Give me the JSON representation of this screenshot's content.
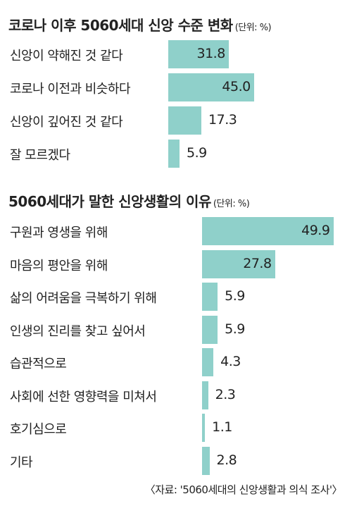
{
  "chart_data": [
    {
      "type": "bar",
      "orientation": "horizontal",
      "title": "코로나 이후 5060세대 신앙 수준 변화",
      "unit": "(단위: %)",
      "categories": [
        "신앙이 약해진 것 같다",
        "코로나 이전과 비슷하다",
        "신앙이 깊어진 것 같다",
        "잘 모르겠다"
      ],
      "values": [
        31.8,
        45.0,
        17.3,
        5.9
      ],
      "value_labels": [
        "31.8",
        "45.0",
        "17.3",
        "5.9"
      ],
      "bar_color": "#8fd0ca"
    },
    {
      "type": "bar",
      "orientation": "horizontal",
      "title": "5060세대가 말한 신앙생활의 이유",
      "unit": "(단위: %)",
      "categories": [
        "구원과 영생을 위해",
        "마음의 평안을 위해",
        "삶의 어려움을 극복하기 위해",
        "인생의 진리를 찾고 싶어서",
        "습관적으로",
        "사회에 선한 영향력을 미쳐서",
        "호기심으로",
        "기타"
      ],
      "values": [
        49.9,
        27.8,
        5.9,
        5.9,
        4.3,
        2.3,
        1.1,
        2.8
      ],
      "value_labels": [
        "49.9",
        "27.8",
        "5.9",
        "5.9",
        "4.3",
        "2.3",
        "1.1",
        "2.8"
      ],
      "bar_color": "#8fd0ca"
    }
  ],
  "source": "〈자료: '5060세대의 신앙생활과 의식 조사'〉"
}
